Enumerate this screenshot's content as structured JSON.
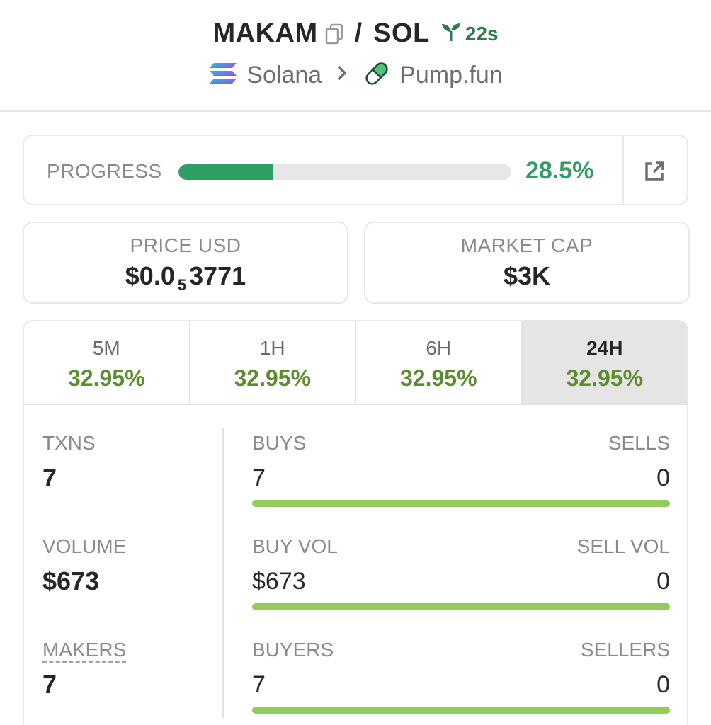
{
  "header": {
    "base_symbol": "MAKAM",
    "quote_symbol": "SOL",
    "separator": "/",
    "age": "22s",
    "chain": "Solana",
    "dex": "Pump.fun",
    "icons": [
      "copy-icon",
      "seedling-icon",
      "solana-logo-icon",
      "chevron-right-icon",
      "pill-icon"
    ]
  },
  "progress": {
    "label": "PROGRESS",
    "percent_text": "28.5%",
    "fraction": 0.285,
    "color": "#2f9e62"
  },
  "price": {
    "label": "PRICE USD",
    "prefix": "$0.0",
    "zeros": "5",
    "digits": "3771"
  },
  "market_cap": {
    "label": "MARKET CAP",
    "value": "$3K"
  },
  "timeframes": [
    {
      "label": "5M",
      "change": "32.95%",
      "active": false
    },
    {
      "label": "1H",
      "change": "32.95%",
      "active": false
    },
    {
      "label": "6H",
      "change": "32.95%",
      "active": false
    },
    {
      "label": "24H",
      "change": "32.95%",
      "active": true
    }
  ],
  "metrics": {
    "txns": {
      "label": "TXNS",
      "value": "7"
    },
    "volume": {
      "label": "VOLUME",
      "value": "$673"
    },
    "makers": {
      "label": "MAKERS",
      "value": "7"
    }
  },
  "splits": {
    "buys_sells": {
      "left_label": "BUYS",
      "right_label": "SELLS",
      "left_value": "7",
      "right_value": "0",
      "buy_fraction": 1.0
    },
    "volume": {
      "left_label": "BUY VOL",
      "right_label": "SELL VOL",
      "left_value": "$673",
      "right_value": "0",
      "buy_fraction": 1.0
    },
    "buyers_sellers": {
      "left_label": "BUYERS",
      "right_label": "SELLERS",
      "left_value": "7",
      "right_value": "0",
      "buy_fraction": 1.0
    }
  },
  "colors": {
    "positive_change": "#5b8d2f",
    "buy_bar": "#92cc5a",
    "sell_bar": "#e05656",
    "age_green": "#2f7a4d"
  }
}
